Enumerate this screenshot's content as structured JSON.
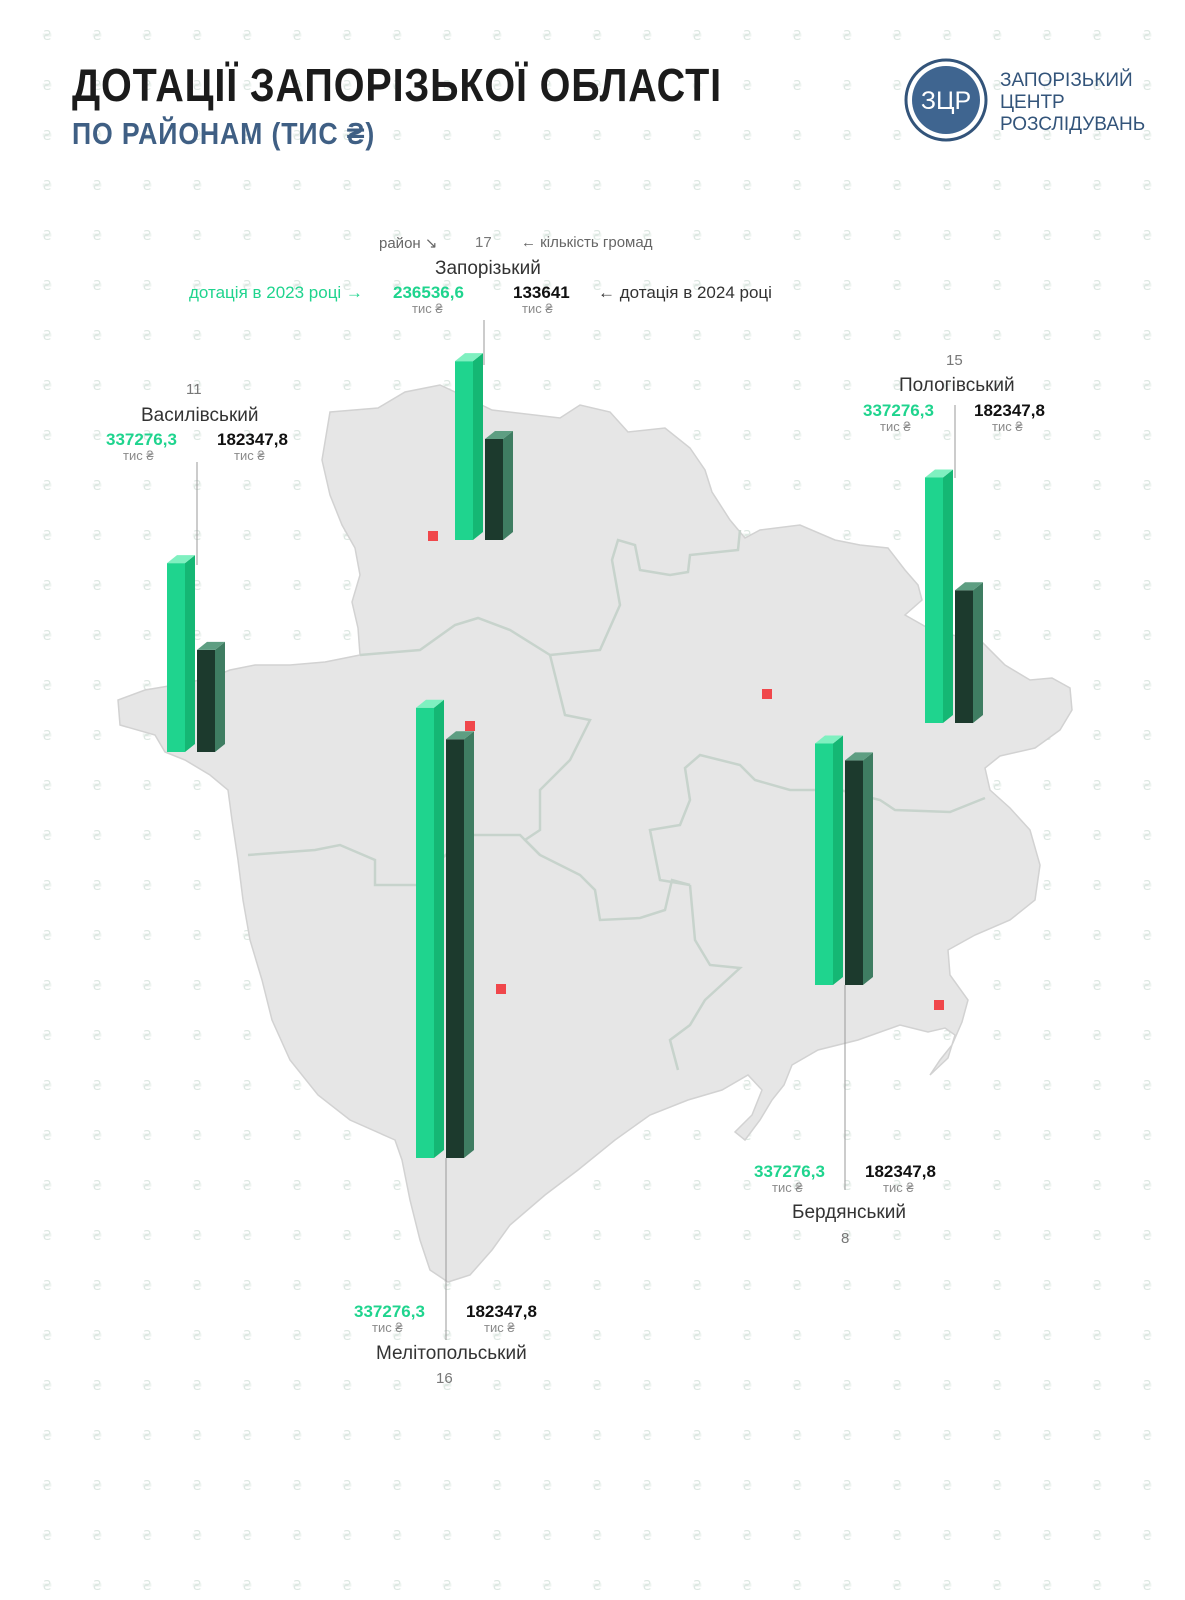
{
  "title": "ДОТАЦІЇ  ЗАПОРІЗЬКОЇ ОБЛАСТІ",
  "subtitle": "ПО РАЙОНАМ (ТИС ₴)",
  "logo": {
    "mark": "ЗЦР",
    "lines": [
      "ЗАПОРІЗЬКИЙ",
      "ЦЕНТР",
      "РОЗСЛІДУВАНЬ"
    ],
    "color": "#33547a"
  },
  "legend": {
    "district": "район ↘",
    "communities": "← кількість громад",
    "dotation_2023": "дотація в 2023 році  →",
    "dotation_2024": "←  дотація в 2024 році"
  },
  "colors": {
    "bar_2023": "#1fd48e",
    "bar_2024": "#1c3a2d",
    "region_fill": "#e6e6e6",
    "region_border": "#c7d3cc",
    "center_marker": "#f0474b"
  },
  "unit": "тис ₴",
  "districts": [
    {
      "key": "zaporizkyi",
      "name": "Запорізький",
      "communities": "17",
      "v2023": 236536.6,
      "v2024": 133641,
      "v2023_text": "236536,6",
      "v2024_text": "133641"
    },
    {
      "key": "vasylivskyi",
      "name": "Василівський",
      "communities": "11",
      "v2023": 337276.3,
      "v2024": 182347.8,
      "v2023_text": "337276,3",
      "v2024_text": "182347,8"
    },
    {
      "key": "polohivskyi",
      "name": "Пологівський",
      "communities": "15",
      "v2023": 337276.3,
      "v2024": 182347.8,
      "v2023_text": "337276,3",
      "v2024_text": "182347,8"
    },
    {
      "key": "melitopolskyi",
      "name": "Мелітопольський",
      "communities": "16",
      "v2023": 337276.3,
      "v2024": 182347.8,
      "v2023_text": "337276,3",
      "v2024_text": "182347,8"
    },
    {
      "key": "berdianskyi",
      "name": "Бердянський",
      "communities": "8",
      "v2023": 337276.3,
      "v2024": 182347.8,
      "v2023_text": "337276,3",
      "v2024_text": "182347,8"
    }
  ]
}
